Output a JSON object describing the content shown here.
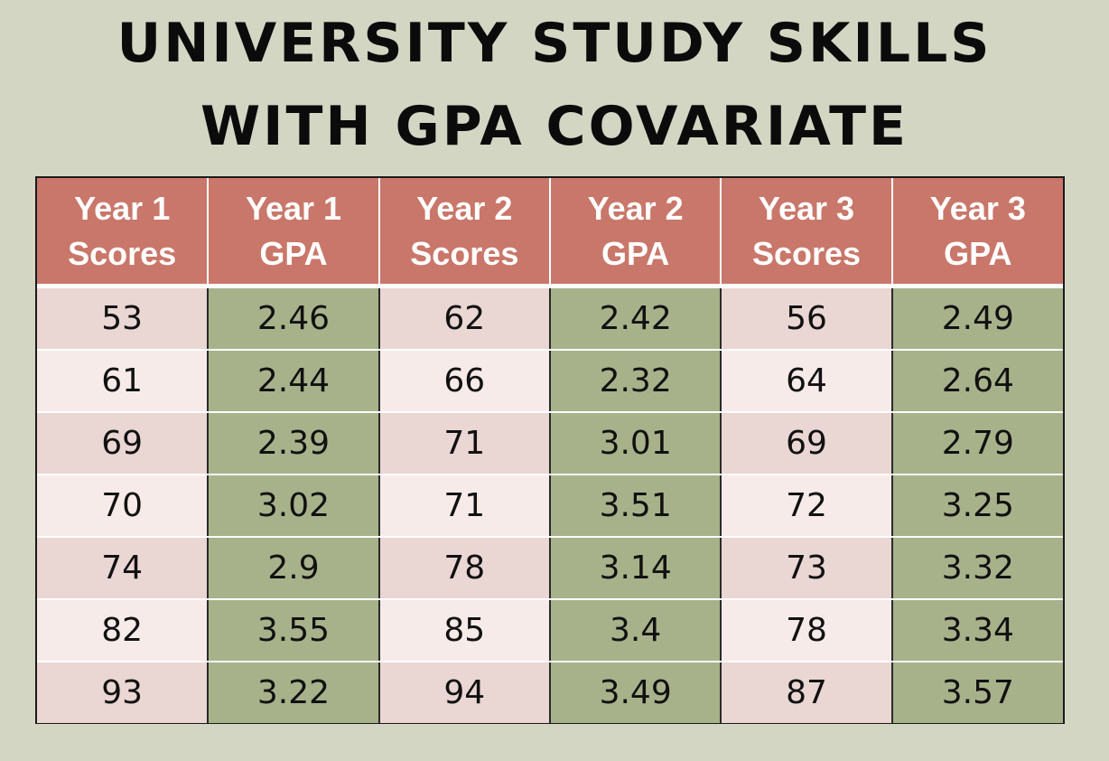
{
  "title": {
    "line1": "UNIVERSITY STUDY SKILLS",
    "line2": "WITH GPA COVARIATE"
  },
  "table": {
    "headers": [
      {
        "line1": "Year 1",
        "line2": "Scores"
      },
      {
        "line1": "Year 1",
        "line2": "GPA"
      },
      {
        "line1": "Year 2",
        "line2": "Scores"
      },
      {
        "line1": "Year 2",
        "line2": "GPA"
      },
      {
        "line1": "Year 3",
        "line2": "Scores"
      },
      {
        "line1": "Year 3",
        "line2": "GPA"
      }
    ],
    "rows": [
      [
        "53",
        "2.46",
        "62",
        "2.42",
        "56",
        "2.49"
      ],
      [
        "61",
        "2.44",
        "66",
        "2.32",
        "64",
        "2.64"
      ],
      [
        "69",
        "2.39",
        "71",
        "3.01",
        "69",
        "2.79"
      ],
      [
        "70",
        "3.02",
        "71",
        "3.51",
        "72",
        "3.25"
      ],
      [
        "74",
        "2.9",
        "78",
        "3.14",
        "73",
        "3.32"
      ],
      [
        "82",
        "3.55",
        "85",
        "3.4",
        "78",
        "3.34"
      ],
      [
        "93",
        "3.22",
        "94",
        "3.49",
        "87",
        "3.57"
      ]
    ]
  },
  "colors": {
    "background": "#d4d6c4",
    "header": "#c9776a",
    "score_cell_dark": "#ead6d3",
    "score_cell_light": "#f7ebea",
    "gpa_cell": "#a7b28b"
  }
}
